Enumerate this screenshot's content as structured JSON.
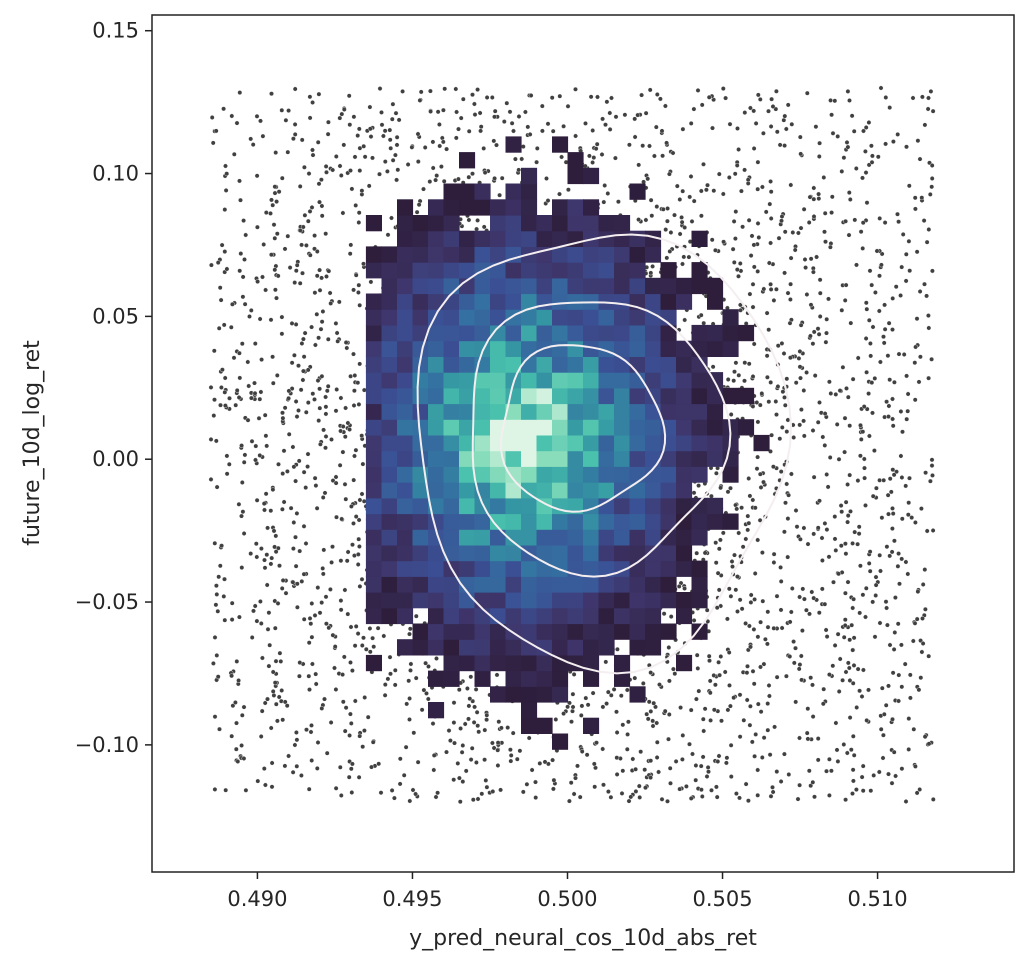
{
  "chart_data": {
    "type": "scatter",
    "title": "",
    "xlabel": "y_pred_neural_cos_10d_abs_ret",
    "ylabel": "future_10d_log_ret",
    "xlim": [
      0.4866,
      0.5144
    ],
    "ylim": [
      -0.1445,
      0.1555
    ],
    "x_ticks": [
      0.49,
      0.495,
      0.5,
      0.505,
      0.51
    ],
    "x_tick_labels": [
      "0.490",
      "0.495",
      "0.500",
      "0.505",
      "0.510"
    ],
    "y_ticks": [
      -0.1,
      -0.05,
      0.0,
      0.05,
      0.1,
      0.15
    ],
    "y_tick_labels": [
      "−0.10",
      "−0.05",
      "0.00",
      "0.05",
      "0.10",
      "0.15"
    ],
    "grid": false,
    "legend": "none",
    "layers": {
      "scatter": {
        "color": "#404040",
        "x_range": [
          0.4885,
          0.5118
        ],
        "y_range": [
          -0.12,
          0.13
        ],
        "shape": "roughly uniform rectangle with dense elliptical core"
      },
      "histogram2d": {
        "colormap": "mako",
        "center": [
          0.4985,
          0.008
        ],
        "x_extent": [
          0.4935,
          0.5097
        ],
        "y_extent": [
          -0.118,
          0.12
        ],
        "bin_size": [
          0.0005,
          0.0055
        ]
      },
      "kde_contours": {
        "color": "#f4eef0",
        "levels": [
          {
            "name": "outer",
            "x_range": [
              0.4951,
              0.507
            ],
            "y_range": [
              -0.071,
              0.081
            ]
          },
          {
            "name": "middle",
            "x_range": [
              0.4967,
              0.505
            ],
            "y_range": [
              -0.039,
              0.057
            ]
          },
          {
            "name": "inner",
            "x_range": [
              0.4978,
              0.503
            ],
            "y_range": [
              -0.018,
              0.04
            ]
          }
        ]
      }
    }
  }
}
